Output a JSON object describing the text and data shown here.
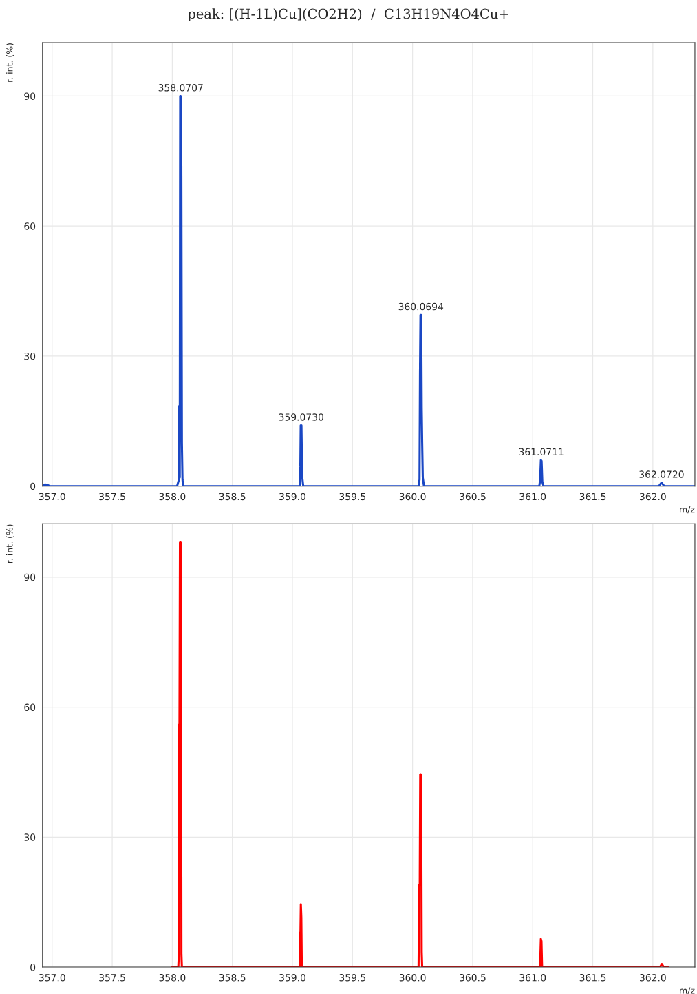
{
  "chart_data": [
    {
      "type": "line",
      "title": "peak: [(H-1L)Cu](CO2H2)  /  C13H19N4O4Cu+",
      "xlabel": "m/z",
      "ylabel": "r. int. (%)",
      "grid": true,
      "marker": "none",
      "line_style": "solid",
      "xlim": [
        356.92,
        362.35
      ],
      "ylim": [
        0,
        102.3
      ],
      "xticks": [
        {
          "value": 357,
          "label": "357.0"
        },
        {
          "value": 357.5,
          "label": "357.5"
        },
        {
          "value": 358,
          "label": "358.0"
        },
        {
          "value": 358.5,
          "label": "358.5"
        },
        {
          "value": 359,
          "label": "359.0"
        },
        {
          "value": 359.5,
          "label": "359.5"
        },
        {
          "value": 360,
          "label": "360.0"
        },
        {
          "value": 360.5,
          "label": "360.5"
        },
        {
          "value": 361,
          "label": "361.0"
        },
        {
          "value": 361.5,
          "label": "361.5"
        },
        {
          "value": 362,
          "label": "362.0"
        }
      ],
      "yticks": [
        0,
        30,
        60,
        90
      ],
      "series": [
        {
          "color": "#1a47c4",
          "x": [
            356.92,
            356.94,
            356.96,
            356.98,
            358.04,
            358.055,
            358.058,
            358.062,
            358.066,
            358.07,
            358.072,
            358.075,
            358.08,
            358.085,
            358.09,
            359.06,
            359.063,
            359.066,
            359.069,
            359.075,
            359.078,
            359.082,
            359.09,
            360.05,
            360.058,
            360.062,
            360.066,
            360.072,
            360.076,
            360.08,
            360.085,
            360.095,
            361.055,
            361.062,
            361.068,
            361.074,
            361.08,
            361.09,
            362.05,
            362.072,
            362.095,
            362.35
          ],
          "values": [
            0,
            0.4,
            0.3,
            0,
            0,
            1.5,
            18.5,
            2,
            90,
            90,
            77,
            77,
            10,
            1.5,
            0,
            0,
            4,
            4.5,
            14,
            14,
            8,
            2,
            0,
            0,
            1.5,
            26,
            39.5,
            39.5,
            18,
            10,
            2,
            0,
            0,
            1.5,
            6,
            5.8,
            1,
            0,
            0,
            0.8,
            0,
            0
          ]
        }
      ],
      "annotations": [
        {
          "text": "358.0707",
          "x": 358.0707,
          "y": 90
        },
        {
          "text": "359.0730",
          "x": 359.073,
          "y": 14
        },
        {
          "text": "360.0694",
          "x": 360.0694,
          "y": 39.5
        },
        {
          "text": "361.0711",
          "x": 361.0711,
          "y": 6
        },
        {
          "text": "362.0720",
          "x": 362.072,
          "y": 0.8
        }
      ]
    },
    {
      "type": "line",
      "xlabel": "m/z",
      "ylabel": "r. int. (%)",
      "grid": true,
      "marker": "none",
      "line_style": "solid",
      "xlim": [
        356.92,
        362.35
      ],
      "ylim": [
        0,
        102.3
      ],
      "xticks": [
        {
          "value": 357,
          "label": "357.0"
        },
        {
          "value": 357.5,
          "label": "357.5"
        },
        {
          "value": 358,
          "label": "358.0"
        },
        {
          "value": 358.5,
          "label": "358.5"
        },
        {
          "value": 359,
          "label": "359.0"
        },
        {
          "value": 359.5,
          "label": "359.5"
        },
        {
          "value": 360,
          "label": "360.0"
        },
        {
          "value": 360.5,
          "label": "360.5"
        },
        {
          "value": 361,
          "label": "361.0"
        },
        {
          "value": 361.5,
          "label": "361.5"
        },
        {
          "value": 362,
          "label": "362.0"
        }
      ],
      "yticks": [
        0,
        30,
        60,
        90
      ],
      "series": [
        {
          "color": "#ff0000",
          "x": [
            358.0,
            358.05,
            358.053,
            358.056,
            358.06,
            358.064,
            358.07,
            358.073,
            358.076,
            358.08,
            359.06,
            359.064,
            359.067,
            359.07,
            359.074,
            359.078,
            360.05,
            360.056,
            360.06,
            360.064,
            360.068,
            360.072,
            360.076,
            360.08,
            361.06,
            361.064,
            361.068,
            361.073,
            361.078,
            362.06,
            362.075,
            362.09,
            362.13
          ],
          "values": [
            0,
            0,
            2,
            56,
            56,
            98,
            98,
            70,
            3,
            0,
            0,
            8,
            8,
            14.5,
            11.5,
            0,
            0,
            19,
            19,
            44.5,
            44.5,
            38,
            3.5,
            0,
            0,
            2.5,
            6.5,
            6,
            0,
            0,
            0.7,
            0,
            0
          ]
        }
      ]
    }
  ]
}
